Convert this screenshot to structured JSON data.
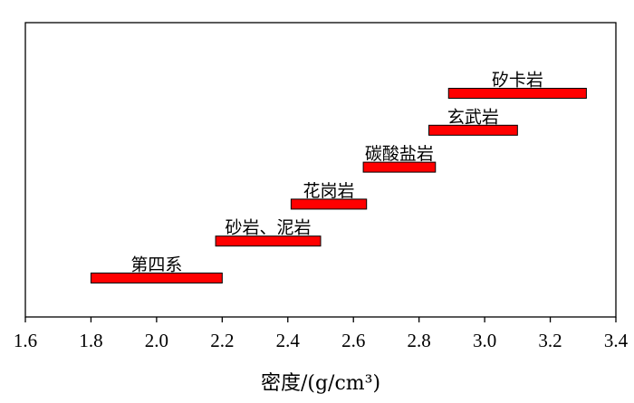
{
  "chart_data": {
    "type": "bar",
    "orientation": "horizontal-range",
    "title": "",
    "xlabel": "密度/(g/cm³)",
    "ylabel": "",
    "xlim": [
      1.6,
      3.4
    ],
    "xticks": [
      "1.6",
      "1.8",
      "2.0",
      "2.2",
      "2.4",
      "2.6",
      "2.8",
      "3.0",
      "3.2",
      "3.4"
    ],
    "grid": false,
    "legend": "none",
    "bar_color": "#ff0000",
    "bar_edge_color": "#000000",
    "series": [
      {
        "label": "第四系",
        "min": 1.8,
        "max": 2.2
      },
      {
        "label": "砂岩、泥岩",
        "min": 2.18,
        "max": 2.5
      },
      {
        "label": "花岗岩",
        "min": 2.41,
        "max": 2.64
      },
      {
        "label": "碳酸盐岩",
        "min": 2.63,
        "max": 2.85
      },
      {
        "label": "玄武岩",
        "min": 2.83,
        "max": 3.1
      },
      {
        "label": "矽卡岩",
        "min": 2.89,
        "max": 3.31
      }
    ]
  }
}
